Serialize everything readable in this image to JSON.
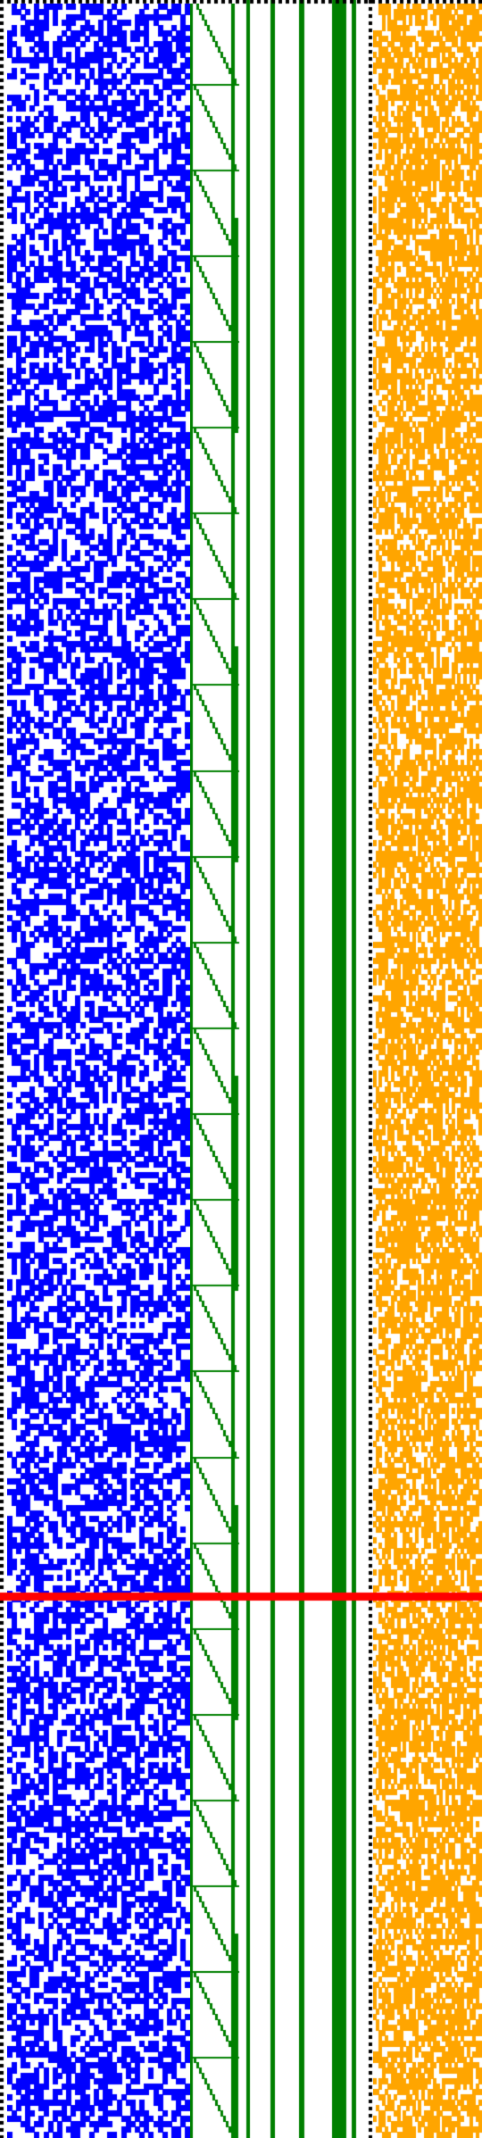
{
  "colors": {
    "background": "#ffffff",
    "blue_cells": "#0000ff",
    "green_lines": "#008000",
    "orange_cells": "#ffa500",
    "divider": "#000000",
    "marker_line": "#ff0000"
  },
  "bit_matrix": {
    "rows": 398,
    "blue_columns": 40,
    "orange_columns": 36,
    "blue_fill_fraction": 0.52,
    "orange_fill_fraction": 0.68
  },
  "marker_row_fraction": 0.745,
  "vertical_bars": [
    {
      "name": "thin-bar-1",
      "weight": 1
    },
    {
      "name": "thin-bar-2",
      "weight": 1
    },
    {
      "name": "thin-bar-3",
      "weight": 1
    },
    {
      "name": "wide-bar-1",
      "weight": 3
    },
    {
      "name": "thin-bar-4",
      "weight": 1
    },
    {
      "name": "divider-bar",
      "weight": 1
    }
  ]
}
